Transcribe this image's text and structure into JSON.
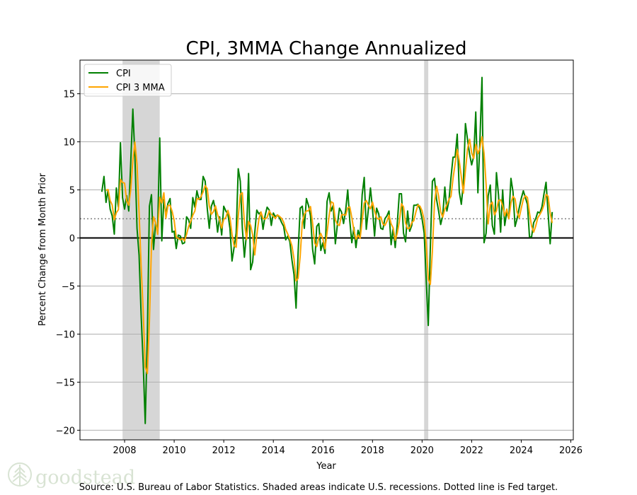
{
  "chart_data": {
    "type": "line",
    "title": "CPI, 3MMA Change Annualized",
    "xlabel": "Year",
    "ylabel": "Percent Change from Month Prior",
    "xlim": [
      2006.2,
      2026.1
    ],
    "ylim": [
      -21,
      18.5
    ],
    "xticks": [
      2008,
      2010,
      2012,
      2014,
      2016,
      2018,
      2020,
      2022,
      2024,
      2026
    ],
    "yticks": [
      -20,
      -15,
      -10,
      -5,
      0,
      5,
      10,
      15
    ],
    "grid": "y",
    "legend_position": "top-left",
    "reference_lines": {
      "zero": 0,
      "fed_target": 2
    },
    "recessions": [
      [
        2007.917,
        2009.417
      ],
      [
        2020.083,
        2020.25
      ]
    ],
    "start": "2007-02",
    "frequency": "monthly",
    "series": [
      {
        "name": "CPI",
        "color": "#008000",
        "values": [
          4.8,
          6.4,
          3.7,
          5.0,
          3.0,
          2.3,
          0.4,
          5.2,
          3.2,
          9.9,
          4.2,
          3.0,
          4.4,
          2.8,
          8.0,
          13.4,
          8.5,
          1.0,
          -1.8,
          -8.0,
          -13.0,
          -19.3,
          -10.0,
          3.3,
          4.5,
          -1.2,
          1.5,
          0.8,
          10.4,
          -0.3,
          4.0,
          2.5,
          3.6,
          4.1,
          0.6,
          0.7,
          -1.1,
          0.3,
          0.2,
          -0.6,
          -0.5,
          2.2,
          1.9,
          1.0,
          4.2,
          3.2,
          4.9,
          4.0,
          4.0,
          6.4,
          5.9,
          3.1,
          1.0,
          3.3,
          3.9,
          2.8,
          0.6,
          2.2,
          0.3,
          3.3,
          2.8,
          2.5,
          1.0,
          -2.4,
          -1.0,
          0.5,
          7.2,
          5.9,
          1.0,
          -2.0,
          0.5,
          6.7,
          -3.3,
          -2.5,
          0.5,
          2.9,
          2.5,
          2.7,
          0.9,
          2.3,
          3.2,
          2.9,
          1.3,
          2.6,
          2.2,
          2.4,
          2.1,
          1.6,
          1.2,
          -0.2,
          0.2,
          -0.4,
          -2.3,
          -3.8,
          -7.3,
          -1.5,
          3.1,
          3.3,
          1.0,
          4.1,
          3.4,
          2.3,
          -1.2,
          -2.7,
          1.2,
          1.5,
          -1.3,
          -0.5,
          -1.6,
          3.8,
          4.7,
          2.8,
          3.4,
          -0.6,
          1.4,
          3.1,
          2.7,
          1.5,
          2.9,
          5.0,
          1.8,
          -0.5,
          1.1,
          -1.0,
          0.8,
          0.1,
          4.5,
          6.3,
          0.9,
          3.0,
          5.2,
          3.0,
          0.2,
          3.1,
          2.5,
          1.0,
          0.9,
          2.0,
          2.3,
          2.8,
          -0.7,
          1.0,
          -1.0,
          1.5,
          4.6,
          4.6,
          0.5,
          -0.4,
          2.8,
          0.7,
          1.3,
          3.4,
          3.4,
          3.5,
          3.0,
          2.0,
          0.5,
          -4.4,
          -9.1,
          -1.0,
          5.9,
          6.2,
          4.0,
          2.8,
          1.4,
          2.3,
          5.3,
          2.8,
          3.9,
          6.3,
          8.4,
          8.4,
          10.8,
          4.8,
          3.5,
          5.7,
          11.9,
          10.2,
          8.7,
          7.6,
          8.5,
          13.1,
          4.7,
          10.2,
          16.7,
          -0.5,
          0.5,
          4.4,
          5.5,
          1.3,
          0.4,
          6.8,
          4.5,
          0.6,
          5.0,
          1.3,
          2.7,
          2.0,
          6.2,
          4.8,
          1.2,
          2.0,
          3.1,
          4.1,
          4.9,
          4.2,
          3.5,
          0.1,
          0.1,
          1.6,
          2.0,
          2.7,
          2.6,
          3.2,
          4.6,
          5.8,
          2.6,
          -0.6,
          2.7
        ]
      },
      {
        "name": "CPI 3 MMA",
        "color": "#ffa500",
        "moving_average_of": "CPI",
        "window": 3
      }
    ]
  },
  "footer": {
    "source": "Source: U.S. Bureau of Labor Statistics. Shaded areas indicate U.S. recessions. Dotted line is Fed target.",
    "logo_text": "goodstead"
  }
}
